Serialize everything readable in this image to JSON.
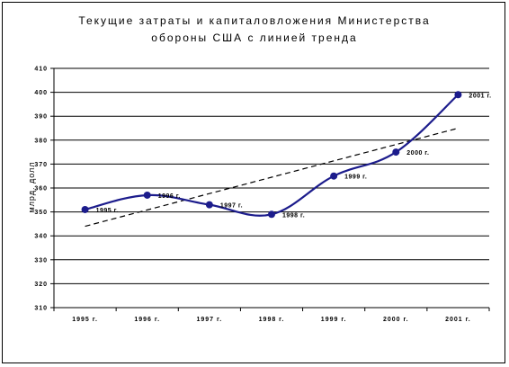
{
  "chart_data": {
    "type": "line",
    "title_lines": [
      "Текущие затраты и капиталовложения Министерства",
      "обороны США с линией тренда"
    ],
    "xlabel": "",
    "ylabel": "млрд. долл",
    "categories": [
      "1995 г.",
      "1996 г.",
      "1997 г.",
      "1998 г.",
      "1999 г.",
      "2000 г.",
      "2001 г."
    ],
    "ylim": [
      310,
      410
    ],
    "yticks": [
      310,
      320,
      330,
      340,
      350,
      360,
      370,
      380,
      390,
      400,
      410
    ],
    "grid": true,
    "series": [
      {
        "values": [
          351,
          357,
          353,
          349,
          365,
          375,
          399
        ],
        "labels": [
          "1995 г.",
          "1996 г.",
          "1997 г.",
          "1998 г.",
          "1999 г.",
          "2000 г.",
          "2001 г."
        ],
        "color": "#1c1c8c",
        "marker": "circle"
      }
    ],
    "trendline": {
      "style": "dashed",
      "color": "#000000",
      "start": 344,
      "end": 385
    }
  }
}
